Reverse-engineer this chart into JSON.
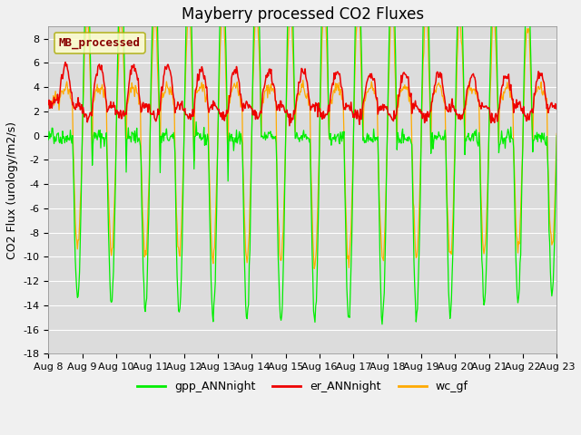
{
  "title": "Mayberry processed CO2 Fluxes",
  "ylabel": "CO2 Flux (urology/m2/s)",
  "ylim": [
    -18,
    9
  ],
  "yticks": [
    -18,
    -16,
    -14,
    -12,
    -10,
    -8,
    -6,
    -4,
    -2,
    0,
    2,
    4,
    6,
    8
  ],
  "xlabel_dates": [
    "Aug 8",
    "Aug 9",
    "Aug 10",
    "Aug 11",
    "Aug 12",
    "Aug 13",
    "Aug 14",
    "Aug 15",
    "Aug 16",
    "Aug 17",
    "Aug 18",
    "Aug 19",
    "Aug 20",
    "Aug 21",
    "Aug 22",
    "Aug 23"
  ],
  "legend_label_box": "MB_processed",
  "legend_labels": [
    "gpp_ANNnight",
    "er_ANNnight",
    "wc_gf"
  ],
  "colors": {
    "gpp_ANNnight": "#00ee00",
    "er_ANNnight": "#ee0000",
    "wc_gf": "#ffaa00"
  },
  "fig_bg": "#f0f0f0",
  "plot_bg": "#dcdcdc",
  "grid_color": "#ffffff",
  "title_fontsize": 12,
  "axis_fontsize": 9,
  "tick_fontsize": 8,
  "legend_fontsize": 9,
  "n_points": 720,
  "days": 15,
  "seed": 42
}
